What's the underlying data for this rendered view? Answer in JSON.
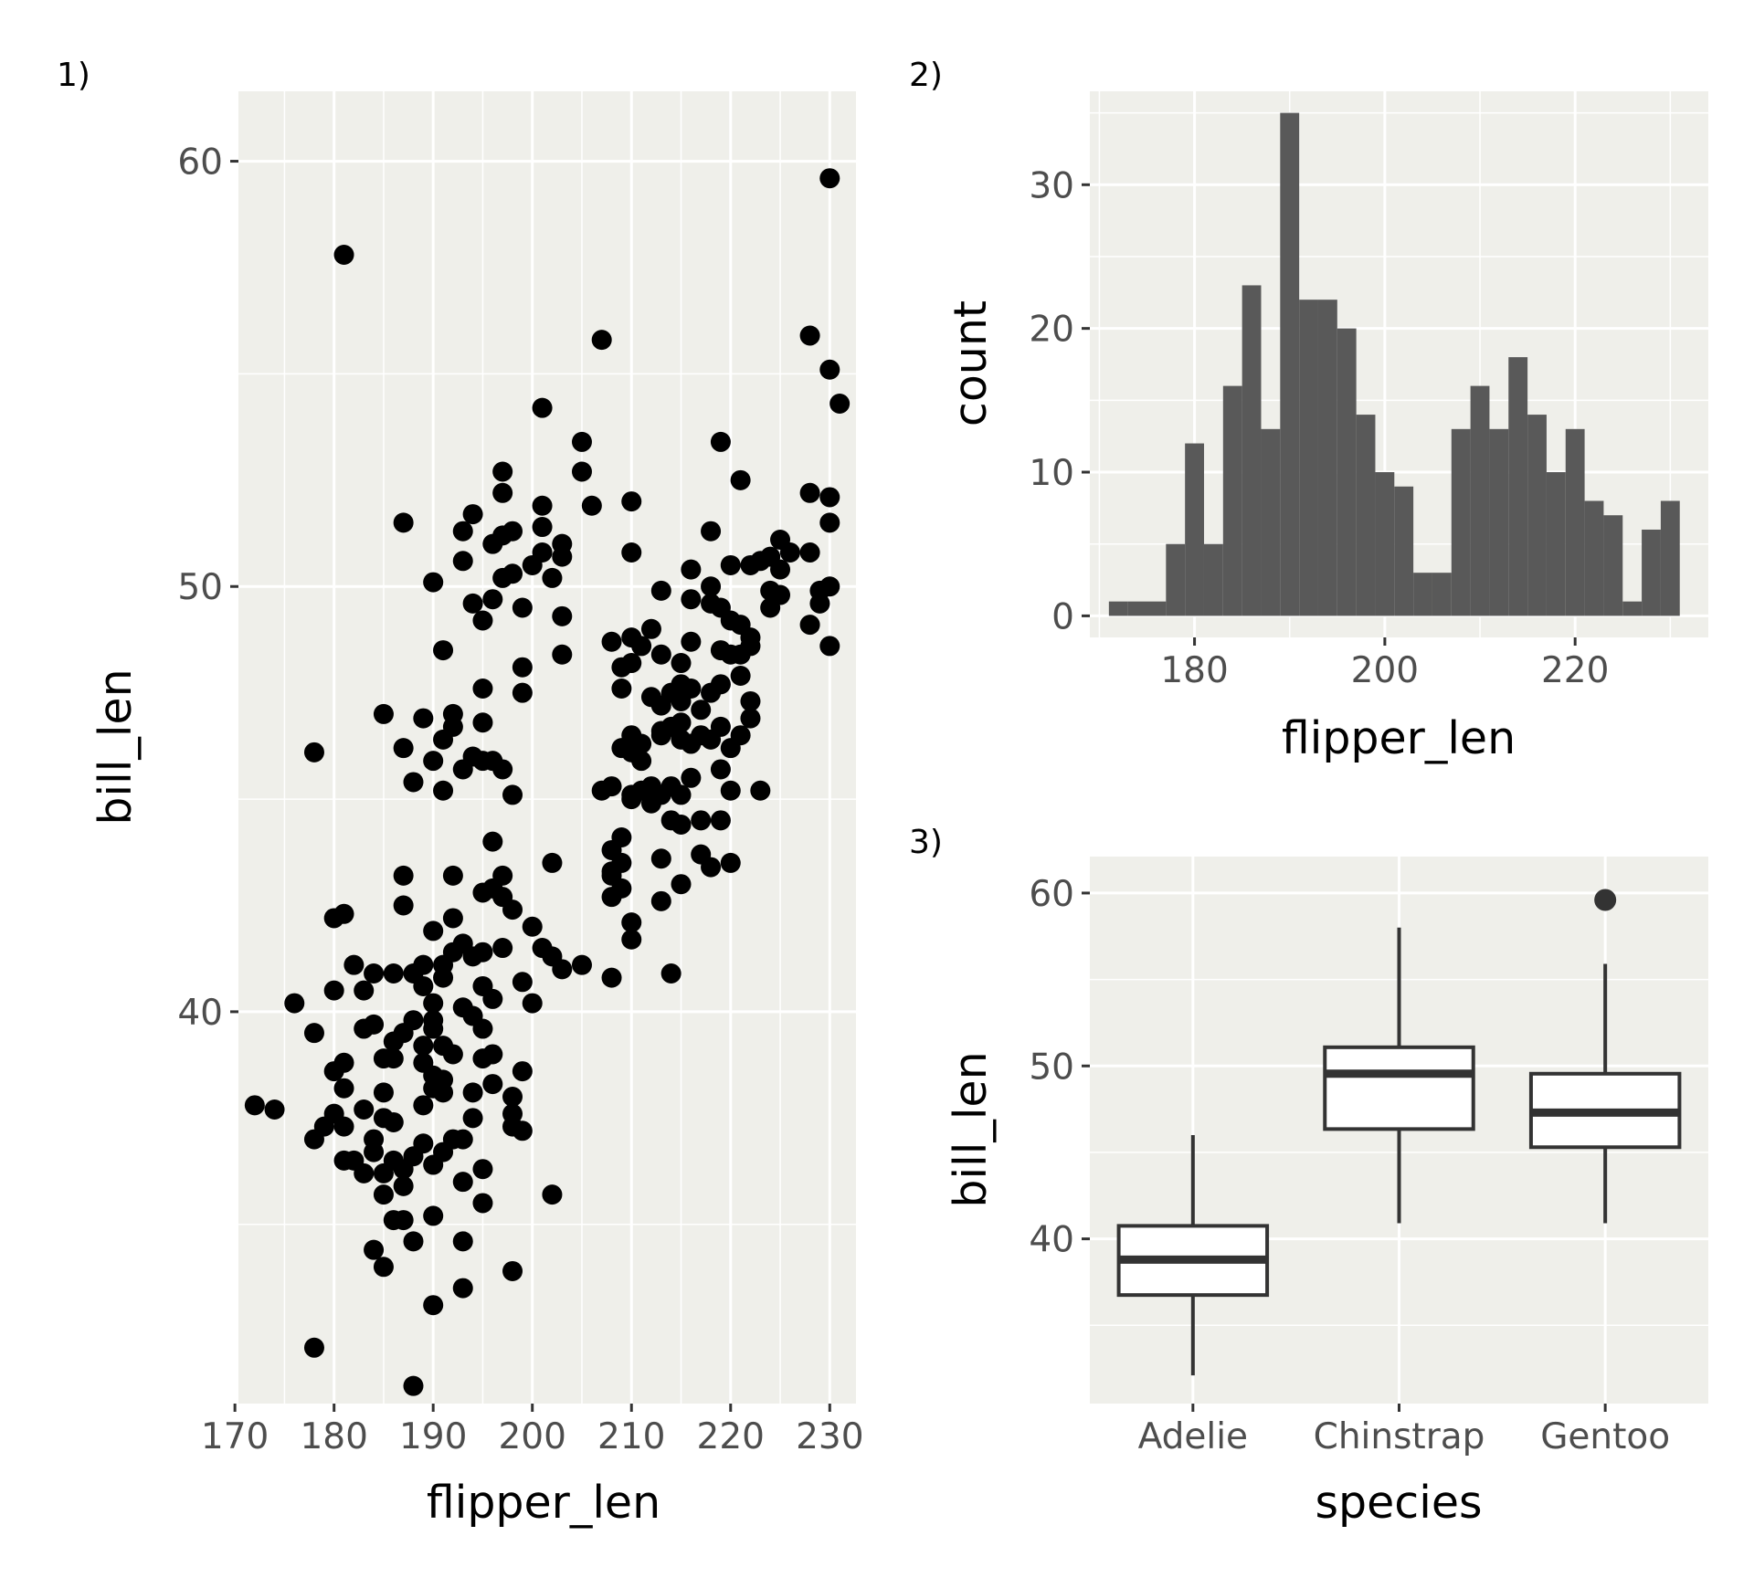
{
  "figure": {
    "background": "#ffffff"
  },
  "theme": {
    "panel_bg": "#efefea",
    "grid": "#ffffff",
    "ink": "#000000",
    "bar_fill": "#595959",
    "box_stroke": "#333333",
    "tick_text": "#4d4d4d"
  },
  "chart_data": [
    {
      "tag": "1)",
      "type": "scatter",
      "xlabel": "flipper_len",
      "ylabel": "bill_len",
      "xlim": [
        171,
        232
      ],
      "ylim": [
        31,
        61
      ],
      "xticks": [
        170,
        180,
        190,
        200,
        210,
        220,
        230
      ],
      "yticks": [
        40,
        50,
        60
      ],
      "grid": true,
      "points": [
        [
          172,
          37.8
        ],
        [
          174,
          37.7
        ],
        [
          176,
          40.2
        ],
        [
          178,
          39.5
        ],
        [
          178,
          37
        ],
        [
          178,
          32.1
        ],
        [
          178,
          46.1
        ],
        [
          179,
          37.3
        ],
        [
          180,
          40.5
        ],
        [
          180,
          38.6
        ],
        [
          180,
          42.2
        ],
        [
          180,
          37.6
        ],
        [
          181,
          42.3
        ],
        [
          181,
          38.8
        ],
        [
          181,
          37.3
        ],
        [
          181,
          38.2
        ],
        [
          181,
          36.5
        ],
        [
          181,
          57.8
        ],
        [
          182,
          41.1
        ],
        [
          182,
          36.5
        ],
        [
          183,
          39.6
        ],
        [
          183,
          40.5
        ],
        [
          183,
          37.7
        ],
        [
          183,
          36.2
        ],
        [
          184,
          39.7
        ],
        [
          184,
          37
        ],
        [
          184,
          36.7
        ],
        [
          184,
          34.4
        ],
        [
          184,
          40.9
        ],
        [
          185,
          38.9
        ],
        [
          185,
          36.2
        ],
        [
          185,
          37.5
        ],
        [
          185,
          35.7
        ],
        [
          185,
          38.1
        ],
        [
          185,
          34
        ],
        [
          185,
          47
        ],
        [
          186,
          39.3
        ],
        [
          186,
          35.1
        ],
        [
          186,
          38.9
        ],
        [
          186,
          37.4
        ],
        [
          186,
          36.5
        ],
        [
          186,
          40.9
        ],
        [
          187,
          39.5
        ],
        [
          187,
          36.3
        ],
        [
          187,
          42.5
        ],
        [
          187,
          35.9
        ],
        [
          187,
          35.1
        ],
        [
          187,
          51.5
        ],
        [
          187,
          46.2
        ],
        [
          187,
          43.2
        ],
        [
          188,
          40.9
        ],
        [
          188,
          39.8
        ],
        [
          188,
          36.6
        ],
        [
          188,
          31.2
        ],
        [
          188,
          34.6
        ],
        [
          188,
          45.4
        ],
        [
          189,
          41.1
        ],
        [
          189,
          37.8
        ],
        [
          189,
          36.9
        ],
        [
          189,
          39.2
        ],
        [
          189,
          40.6
        ],
        [
          189,
          38.8
        ],
        [
          189,
          46.9
        ],
        [
          190,
          41.9
        ],
        [
          190,
          36.4
        ],
        [
          190,
          39.6
        ],
        [
          190,
          38.5
        ],
        [
          190,
          40.2
        ],
        [
          190,
          35.2
        ],
        [
          190,
          33.1
        ],
        [
          190,
          39.8
        ],
        [
          190,
          38.2
        ],
        [
          190,
          45.9
        ],
        [
          190,
          50.1
        ],
        [
          191,
          41.1
        ],
        [
          191,
          39.2
        ],
        [
          191,
          38.1
        ],
        [
          191,
          36.7
        ],
        [
          191,
          40.8
        ],
        [
          191,
          46.4
        ],
        [
          191,
          45.2
        ],
        [
          191,
          48.5
        ],
        [
          191,
          38.4
        ],
        [
          192,
          42.2
        ],
        [
          192,
          41.4
        ],
        [
          192,
          37
        ],
        [
          192,
          39
        ],
        [
          192,
          46.7
        ],
        [
          192,
          47
        ],
        [
          192,
          43.2
        ],
        [
          193,
          41.6
        ],
        [
          193,
          40.1
        ],
        [
          193,
          37
        ],
        [
          193,
          36
        ],
        [
          193,
          34.6
        ],
        [
          193,
          45.7
        ],
        [
          193,
          51.3
        ],
        [
          193,
          50.6
        ],
        [
          193,
          33.5
        ],
        [
          194,
          41.3
        ],
        [
          194,
          38.1
        ],
        [
          194,
          37.5
        ],
        [
          194,
          39.9
        ],
        [
          194,
          46
        ],
        [
          194,
          49.6
        ],
        [
          194,
          51.7
        ],
        [
          195,
          42.8
        ],
        [
          195,
          40.6
        ],
        [
          195,
          39.6
        ],
        [
          195,
          38.9
        ],
        [
          195,
          36.3
        ],
        [
          195,
          35.5
        ],
        [
          195,
          45.9
        ],
        [
          195,
          46.8
        ],
        [
          195,
          49.2
        ],
        [
          195,
          47.6
        ],
        [
          195,
          41.4
        ],
        [
          196,
          40.3
        ],
        [
          196,
          39
        ],
        [
          196,
          44
        ],
        [
          196,
          42.9
        ],
        [
          196,
          49.7
        ],
        [
          196,
          51
        ],
        [
          196,
          45.9
        ],
        [
          196,
          38.3
        ],
        [
          197,
          43.2
        ],
        [
          197,
          41.5
        ],
        [
          197,
          52.2
        ],
        [
          197,
          52.7
        ],
        [
          197,
          50.2
        ],
        [
          197,
          51.2
        ],
        [
          197,
          45.7
        ],
        [
          197,
          42.7
        ],
        [
          198,
          42.4
        ],
        [
          198,
          38
        ],
        [
          198,
          37.6
        ],
        [
          198,
          45.1
        ],
        [
          198,
          50.3
        ],
        [
          198,
          51.3
        ],
        [
          198,
          33.9
        ],
        [
          198,
          37.3
        ],
        [
          199,
          48.1
        ],
        [
          199,
          47.5
        ],
        [
          199,
          38.6
        ],
        [
          199,
          37.2
        ],
        [
          199,
          40.7
        ],
        [
          199,
          49.5
        ],
        [
          200,
          42
        ],
        [
          200,
          40.2
        ],
        [
          200,
          50.5
        ],
        [
          201,
          41.5
        ],
        [
          201,
          50.8
        ],
        [
          201,
          51.4
        ],
        [
          201,
          51.9
        ],
        [
          201,
          54.2
        ],
        [
          202,
          43.5
        ],
        [
          202,
          41.3
        ],
        [
          202,
          50.2
        ],
        [
          202,
          35.7
        ],
        [
          203,
          49.3
        ],
        [
          203,
          48.4
        ],
        [
          203,
          50.7
        ],
        [
          203,
          41
        ],
        [
          203,
          51
        ],
        [
          205,
          53.4
        ],
        [
          205,
          52.7
        ],
        [
          205,
          41.1
        ],
        [
          206,
          51.9
        ],
        [
          207,
          55.8
        ],
        [
          207,
          45.2
        ],
        [
          208,
          48.7
        ],
        [
          208,
          43.8
        ],
        [
          208,
          43.3
        ],
        [
          208,
          42.7
        ],
        [
          208,
          43.2
        ],
        [
          208,
          40.8
        ],
        [
          208,
          45.3
        ],
        [
          209,
          47.6
        ],
        [
          209,
          43.5
        ],
        [
          209,
          44.1
        ],
        [
          209,
          42.9
        ],
        [
          209,
          46.2
        ],
        [
          209,
          48.1
        ],
        [
          210,
          45
        ],
        [
          210,
          48.2
        ],
        [
          210,
          42.1
        ],
        [
          210,
          41.7
        ],
        [
          210,
          52
        ],
        [
          210,
          50.8
        ],
        [
          210,
          46.1
        ],
        [
          210,
          45.1
        ],
        [
          210,
          48.8
        ],
        [
          210,
          46.5
        ],
        [
          211,
          45.2
        ],
        [
          211,
          46.3
        ],
        [
          211,
          48.6
        ],
        [
          211,
          45.9
        ],
        [
          212,
          47.4
        ],
        [
          212,
          45.3
        ],
        [
          212,
          49
        ],
        [
          212,
          44.9
        ],
        [
          213,
          46.5
        ],
        [
          213,
          47.2
        ],
        [
          213,
          43.6
        ],
        [
          213,
          45.1
        ],
        [
          213,
          42.6
        ],
        [
          213,
          49.9
        ],
        [
          213,
          48.4
        ],
        [
          213,
          46.6
        ],
        [
          214,
          47.5
        ],
        [
          214,
          45.3
        ],
        [
          214,
          40.9
        ],
        [
          214,
          44.5
        ],
        [
          214,
          46.7
        ],
        [
          215,
          47.7
        ],
        [
          215,
          46.8
        ],
        [
          215,
          45.1
        ],
        [
          215,
          44.4
        ],
        [
          215,
          46.4
        ],
        [
          215,
          47.3
        ],
        [
          215,
          43
        ],
        [
          215,
          48.2
        ],
        [
          216,
          47.6
        ],
        [
          216,
          50.4
        ],
        [
          216,
          48.7
        ],
        [
          216,
          49.7
        ],
        [
          216,
          45.5
        ],
        [
          216,
          46.3
        ],
        [
          217,
          44.5
        ],
        [
          217,
          47.1
        ],
        [
          217,
          46.5
        ],
        [
          217,
          43.7
        ],
        [
          218,
          47.5
        ],
        [
          218,
          49.6
        ],
        [
          218,
          43.4
        ],
        [
          218,
          46.4
        ],
        [
          218,
          50
        ],
        [
          218,
          51.3
        ],
        [
          219,
          53.4
        ],
        [
          219,
          44.5
        ],
        [
          219,
          45.7
        ],
        [
          219,
          46.7
        ],
        [
          219,
          49.5
        ],
        [
          219,
          48.5
        ],
        [
          219,
          47.7
        ],
        [
          220,
          45.2
        ],
        [
          220,
          49.2
        ],
        [
          220,
          50.5
        ],
        [
          220,
          43.5
        ],
        [
          220,
          48.4
        ],
        [
          220,
          46.2
        ],
        [
          221,
          52.5
        ],
        [
          221,
          47.9
        ],
        [
          221,
          48.4
        ],
        [
          221,
          49.1
        ],
        [
          221,
          46.5
        ],
        [
          222,
          48.6
        ],
        [
          222,
          48.8
        ],
        [
          222,
          50.5
        ],
        [
          222,
          47.3
        ],
        [
          222,
          46.9
        ],
        [
          223,
          45.2
        ],
        [
          223,
          50.6
        ],
        [
          224,
          49.5
        ],
        [
          224,
          50.7
        ],
        [
          224,
          49.9
        ],
        [
          225,
          50.4
        ],
        [
          225,
          49.8
        ],
        [
          225,
          51.1
        ],
        [
          226,
          50.8
        ],
        [
          228,
          52.2
        ],
        [
          228,
          50.8
        ],
        [
          228,
          49.1
        ],
        [
          228,
          55.9
        ],
        [
          229,
          49.6
        ],
        [
          229,
          49.9
        ],
        [
          230,
          50
        ],
        [
          230,
          51.5
        ],
        [
          230,
          55.1
        ],
        [
          230,
          59.6
        ],
        [
          230,
          48.6
        ],
        [
          230,
          52.1
        ],
        [
          231,
          54.3
        ]
      ]
    },
    {
      "tag": "2)",
      "type": "bar",
      "xlabel": "flipper_len",
      "ylabel": "count",
      "xlim": [
        169,
        234
      ],
      "ylim": [
        -1.5,
        36.5
      ],
      "xticks": [
        180,
        200,
        220
      ],
      "yticks": [
        0,
        10,
        20,
        30
      ],
      "grid": true,
      "bins": [
        {
          "x0": 171,
          "x1": 173,
          "count": 1
        },
        {
          "x0": 173,
          "x1": 175,
          "count": 1
        },
        {
          "x0": 175,
          "x1": 177,
          "count": 1
        },
        {
          "x0": 177,
          "x1": 179,
          "count": 5
        },
        {
          "x0": 179,
          "x1": 181,
          "count": 12
        },
        {
          "x0": 181,
          "x1": 183,
          "count": 5
        },
        {
          "x0": 183,
          "x1": 185,
          "count": 16
        },
        {
          "x0": 185,
          "x1": 187,
          "count": 23
        },
        {
          "x0": 187,
          "x1": 189,
          "count": 13
        },
        {
          "x0": 189,
          "x1": 191,
          "count": 35
        },
        {
          "x0": 191,
          "x1": 193,
          "count": 22
        },
        {
          "x0": 193,
          "x1": 195,
          "count": 22
        },
        {
          "x0": 195,
          "x1": 197,
          "count": 20
        },
        {
          "x0": 197,
          "x1": 199,
          "count": 14
        },
        {
          "x0": 199,
          "x1": 201,
          "count": 10
        },
        {
          "x0": 201,
          "x1": 203,
          "count": 9
        },
        {
          "x0": 203,
          "x1": 205,
          "count": 3
        },
        {
          "x0": 205,
          "x1": 207,
          "count": 3
        },
        {
          "x0": 207,
          "x1": 209,
          "count": 13
        },
        {
          "x0": 209,
          "x1": 211,
          "count": 16
        },
        {
          "x0": 211,
          "x1": 213,
          "count": 13
        },
        {
          "x0": 213,
          "x1": 215,
          "count": 18
        },
        {
          "x0": 215,
          "x1": 217,
          "count": 14
        },
        {
          "x0": 217,
          "x1": 219,
          "count": 10
        },
        {
          "x0": 219,
          "x1": 221,
          "count": 13
        },
        {
          "x0": 221,
          "x1": 223,
          "count": 8
        },
        {
          "x0": 223,
          "x1": 225,
          "count": 7
        },
        {
          "x0": 225,
          "x1": 227,
          "count": 1
        },
        {
          "x0": 227,
          "x1": 229,
          "count": 6
        },
        {
          "x0": 229,
          "x1": 231,
          "count": 8
        }
      ]
    },
    {
      "tag": "3)",
      "type": "box",
      "xlabel": "species",
      "ylabel": "bill_len",
      "ylim": [
        31,
        61
      ],
      "yticks": [
        40,
        50,
        60
      ],
      "categories": [
        "Adelie",
        "Chinstrap",
        "Gentoo"
      ],
      "grid": true,
      "boxes": [
        {
          "name": "Adelie",
          "min": 32.1,
          "q1": 36.75,
          "median": 38.8,
          "q3": 40.75,
          "max": 46.0,
          "outliers": []
        },
        {
          "name": "Chinstrap",
          "min": 40.9,
          "q1": 46.35,
          "median": 49.55,
          "q3": 51.08,
          "max": 58.0,
          "outliers": []
        },
        {
          "name": "Gentoo",
          "min": 40.9,
          "q1": 45.3,
          "median": 47.3,
          "q3": 49.55,
          "max": 55.9,
          "outliers": [
            59.6
          ]
        }
      ]
    }
  ]
}
